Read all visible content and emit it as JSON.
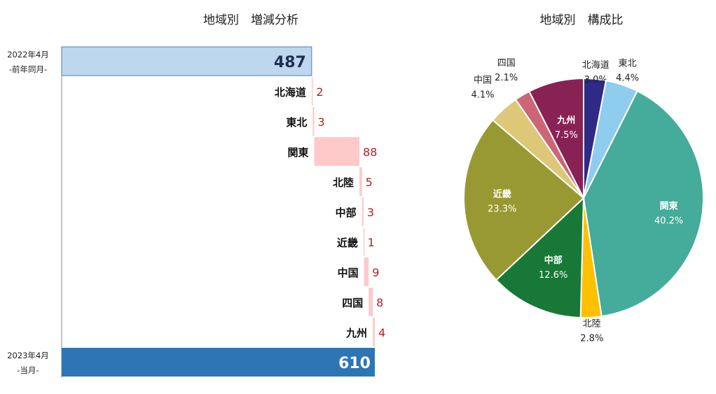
{
  "chart_data": [
    {
      "type": "bar",
      "subtype": "waterfall",
      "title": "地域別　増減分析",
      "start": {
        "label_line1": "2022年4月",
        "label_line2": "-前年同月-",
        "value": 487
      },
      "end": {
        "label_line1": "2023年4月",
        "label_line2": "-当月-",
        "value": 610
      },
      "categories": [
        "北海道",
        "東北",
        "関東",
        "北陸",
        "中部",
        "近畿",
        "中国",
        "四国",
        "九州"
      ],
      "values": [
        2,
        3,
        88,
        5,
        3,
        1,
        9,
        8,
        4
      ],
      "colors": {
        "start": "#bdd7ee",
        "end": "#2e75b6",
        "increase": "#ffc9c9",
        "value_label": "#b22222"
      }
    },
    {
      "type": "pie",
      "title": "地域別　構成比",
      "labels": [
        "北海道",
        "東北",
        "関東",
        "北陸",
        "中部",
        "近畿",
        "中国",
        "四国",
        "九州"
      ],
      "values": [
        3.0,
        4.4,
        40.2,
        2.8,
        12.6,
        23.3,
        4.1,
        2.1,
        7.5
      ],
      "value_labels": [
        "3.0%",
        "4.4%",
        "40.2%",
        "2.8%",
        "12.6%",
        "23.3%",
        "4.1%",
        "2.1%",
        "7.5%"
      ],
      "colors": [
        "#2e2a85",
        "#8ecdee",
        "#45ab9a",
        "#ffc000",
        "#177838",
        "#999933",
        "#dcc878",
        "#cc6677",
        "#882255"
      ]
    }
  ]
}
